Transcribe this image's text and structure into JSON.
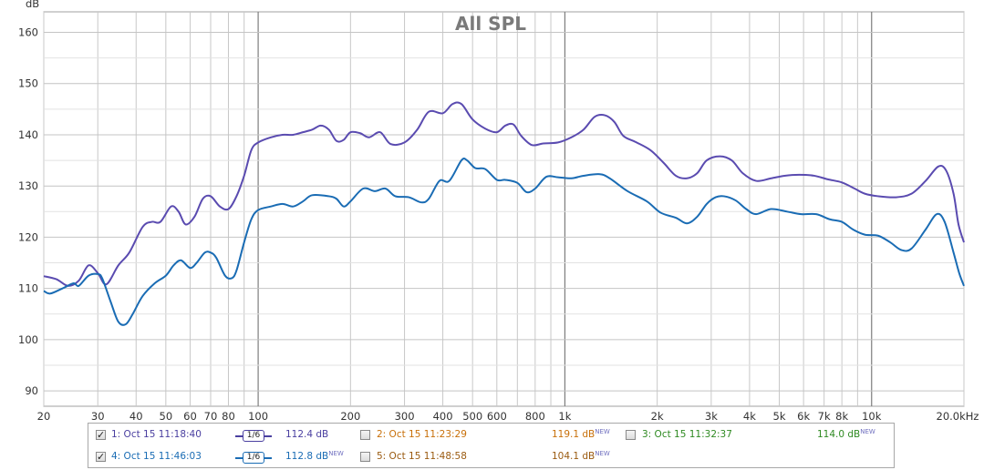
{
  "chart_data": {
    "type": "line",
    "title": "All SPL",
    "ylabel": "dB",
    "x_scale": "log",
    "xlim": [
      20,
      20000
    ],
    "ylim": [
      87,
      164
    ],
    "y_ticks": [
      "90",
      "100",
      "110",
      "120",
      "130",
      "140",
      "150",
      "160"
    ],
    "y_tick_values": [
      90,
      100,
      110,
      120,
      130,
      140,
      150,
      160
    ],
    "x_ticks": [
      "20",
      "30",
      "40",
      "50",
      "60",
      "70",
      "80",
      "100",
      "200",
      "300",
      "400",
      "500",
      "600",
      "800",
      "1k",
      "2k",
      "3k",
      "4k",
      "5k",
      "6k",
      "7k",
      "8k",
      "10k",
      "20.0kHz"
    ],
    "x_tick_values": [
      20,
      30,
      40,
      50,
      60,
      70,
      80,
      100,
      200,
      300,
      400,
      500,
      600,
      800,
      1000,
      2000,
      3000,
      4000,
      5000,
      6000,
      7000,
      8000,
      10000,
      20000
    ],
    "grid": true,
    "series": [
      {
        "name": "1: Oct 15 11:18:40",
        "color": "#5a4bb0",
        "points": [
          [
            20,
            112.4
          ],
          [
            22,
            111.8
          ],
          [
            24,
            110.5
          ],
          [
            26,
            111.5
          ],
          [
            28,
            114.5
          ],
          [
            30,
            113
          ],
          [
            32,
            110.8
          ],
          [
            35,
            114.5
          ],
          [
            38,
            117
          ],
          [
            42,
            122
          ],
          [
            45,
            123
          ],
          [
            48,
            123
          ],
          [
            52,
            126
          ],
          [
            55,
            125
          ],
          [
            58,
            122.5
          ],
          [
            62,
            124
          ],
          [
            66,
            127.5
          ],
          [
            70,
            128
          ],
          [
            75,
            126
          ],
          [
            80,
            125.5
          ],
          [
            85,
            128
          ],
          [
            90,
            132
          ],
          [
            95,
            137
          ],
          [
            100,
            138.5
          ],
          [
            110,
            139.5
          ],
          [
            120,
            140
          ],
          [
            130,
            140
          ],
          [
            140,
            140.5
          ],
          [
            150,
            141
          ],
          [
            160,
            141.8
          ],
          [
            170,
            141
          ],
          [
            180,
            138.8
          ],
          [
            190,
            139
          ],
          [
            200,
            140.5
          ],
          [
            215,
            140.3
          ],
          [
            230,
            139.5
          ],
          [
            250,
            140.5
          ],
          [
            270,
            138.2
          ],
          [
            300,
            138.5
          ],
          [
            330,
            141
          ],
          [
            360,
            144.5
          ],
          [
            400,
            144.2
          ],
          [
            430,
            146
          ],
          [
            460,
            146
          ],
          [
            500,
            143
          ],
          [
            550,
            141.2
          ],
          [
            600,
            140.5
          ],
          [
            640,
            141.8
          ],
          [
            680,
            142
          ],
          [
            720,
            139.8
          ],
          [
            780,
            138
          ],
          [
            850,
            138.3
          ],
          [
            950,
            138.5
          ],
          [
            1050,
            139.5
          ],
          [
            1150,
            141
          ],
          [
            1250,
            143.5
          ],
          [
            1350,
            143.8
          ],
          [
            1450,
            142.5
          ],
          [
            1550,
            139.8
          ],
          [
            1700,
            138.6
          ],
          [
            1900,
            137
          ],
          [
            2100,
            134.5
          ],
          [
            2300,
            132
          ],
          [
            2500,
            131.5
          ],
          [
            2700,
            132.5
          ],
          [
            2900,
            135
          ],
          [
            3200,
            135.8
          ],
          [
            3500,
            135
          ],
          [
            3800,
            132.5
          ],
          [
            4200,
            131
          ],
          [
            4700,
            131.5
          ],
          [
            5200,
            132
          ],
          [
            5800,
            132.2
          ],
          [
            6500,
            132
          ],
          [
            7200,
            131.3
          ],
          [
            8000,
            130.7
          ],
          [
            8800,
            129.5
          ],
          [
            9500,
            128.5
          ],
          [
            10500,
            128
          ],
          [
            12000,
            127.8
          ],
          [
            13500,
            128.5
          ],
          [
            15000,
            131
          ],
          [
            16500,
            133.8
          ],
          [
            17500,
            133
          ],
          [
            18500,
            128.5
          ],
          [
            19200,
            122.5
          ],
          [
            20000,
            119
          ]
        ]
      },
      {
        "name": "4: Oct 15 11:46:03",
        "color": "#1a6cb4",
        "points": [
          [
            20,
            109.5
          ],
          [
            21,
            109
          ],
          [
            23,
            110
          ],
          [
            25,
            111
          ],
          [
            26,
            110.5
          ],
          [
            28,
            112.5
          ],
          [
            30,
            112.8
          ],
          [
            31,
            112
          ],
          [
            33,
            107.5
          ],
          [
            35,
            103.5
          ],
          [
            37,
            103
          ],
          [
            39,
            105
          ],
          [
            42,
            108.5
          ],
          [
            46,
            111
          ],
          [
            50,
            112.5
          ],
          [
            53,
            114.5
          ],
          [
            56,
            115.5
          ],
          [
            60,
            114
          ],
          [
            63,
            115
          ],
          [
            67,
            117
          ],
          [
            70,
            117
          ],
          [
            73,
            116
          ],
          [
            78,
            112.5
          ],
          [
            82,
            112
          ],
          [
            85,
            113.5
          ],
          [
            90,
            119
          ],
          [
            95,
            123.5
          ],
          [
            100,
            125.3
          ],
          [
            110,
            126
          ],
          [
            120,
            126.5
          ],
          [
            130,
            126
          ],
          [
            140,
            127
          ],
          [
            150,
            128.2
          ],
          [
            170,
            128
          ],
          [
            180,
            127.5
          ],
          [
            190,
            126
          ],
          [
            200,
            127
          ],
          [
            220,
            129.5
          ],
          [
            240,
            129
          ],
          [
            260,
            129.5
          ],
          [
            280,
            128
          ],
          [
            310,
            127.8
          ],
          [
            340,
            126.8
          ],
          [
            360,
            127.5
          ],
          [
            390,
            131
          ],
          [
            420,
            131
          ],
          [
            460,
            135
          ],
          [
            480,
            135
          ],
          [
            510,
            133.5
          ],
          [
            550,
            133.3
          ],
          [
            600,
            131.2
          ],
          [
            640,
            131.2
          ],
          [
            700,
            130.6
          ],
          [
            750,
            128.8
          ],
          [
            800,
            129.5
          ],
          [
            870,
            131.8
          ],
          [
            950,
            131.7
          ],
          [
            1050,
            131.5
          ],
          [
            1150,
            132
          ],
          [
            1300,
            132.3
          ],
          [
            1400,
            131.5
          ],
          [
            1600,
            129
          ],
          [
            1850,
            127
          ],
          [
            2050,
            124.8
          ],
          [
            2300,
            123.8
          ],
          [
            2500,
            122.7
          ],
          [
            2700,
            124
          ],
          [
            2900,
            126.5
          ],
          [
            3100,
            127.8
          ],
          [
            3300,
            128
          ],
          [
            3600,
            127.2
          ],
          [
            3900,
            125.5
          ],
          [
            4200,
            124.5
          ],
          [
            4700,
            125.5
          ],
          [
            5300,
            125
          ],
          [
            5900,
            124.5
          ],
          [
            6600,
            124.5
          ],
          [
            7300,
            123.5
          ],
          [
            8000,
            123
          ],
          [
            8700,
            121.5
          ],
          [
            9500,
            120.5
          ],
          [
            10500,
            120.3
          ],
          [
            11500,
            119
          ],
          [
            12500,
            117.5
          ],
          [
            13500,
            117.8
          ],
          [
            15000,
            121.5
          ],
          [
            16300,
            124.5
          ],
          [
            17300,
            123
          ],
          [
            18500,
            117
          ],
          [
            19300,
            113
          ],
          [
            20000,
            110.5
          ]
        ]
      }
    ]
  },
  "legend": {
    "rows": [
      [
        {
          "checked": true,
          "check_glyph": "✓",
          "label": "1: Oct 15 11:18:40",
          "color": "#4a3fa0",
          "smoothing": "1/6",
          "value": "112.4 dB",
          "new": ""
        },
        {
          "checked": false,
          "check_glyph": "",
          "label": "2: Oct 15 11:23:29",
          "color": "#c8700a",
          "value": "119.1 dB",
          "new": "NEW"
        },
        {
          "checked": false,
          "check_glyph": "",
          "label": "3: Oct 15 11:32:37",
          "color": "#2f8a22",
          "value": "114.0 dB",
          "new": "NEW"
        }
      ],
      [
        {
          "checked": true,
          "check_glyph": "✓",
          "label": "4: Oct 15 11:46:03",
          "color": "#1a6cb4",
          "smoothing": "1/6",
          "value": "112.8 dB",
          "new": "NEW"
        },
        {
          "checked": false,
          "check_glyph": "",
          "label": "5: Oct 15 11:48:58",
          "color": "#9a5a10",
          "value": "104.1 dB",
          "new": "NEW"
        }
      ]
    ]
  }
}
